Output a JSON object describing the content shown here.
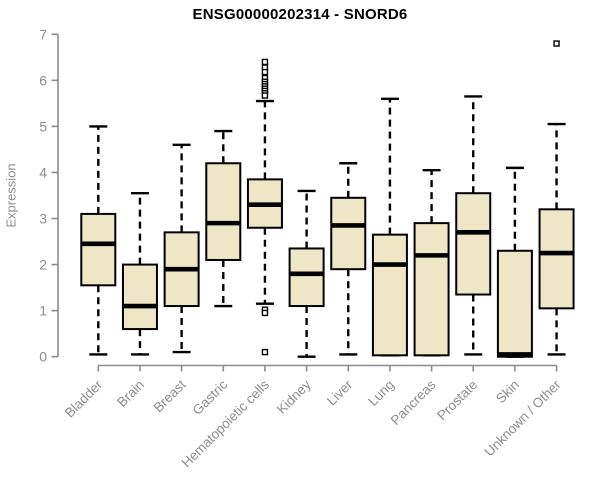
{
  "colors": {
    "box_fill": "#EDE7C8",
    "box_border": "#000000",
    "median_color": "#000000",
    "axis_color": "#8C8C8C",
    "tick_label_color": "#8E8E8E",
    "title_color": "#000000",
    "background": "#FFFFFF"
  },
  "chart_data": {
    "type": "boxplot",
    "title": "ENSG00000202314 - SNORD6",
    "ylabel": "Expression",
    "xlabel": "",
    "ylim": [
      0,
      7
    ],
    "yticks": [
      0,
      1,
      2,
      3,
      4,
      5,
      6,
      7
    ],
    "grid": false,
    "legend": false,
    "categories": [
      "Bladder",
      "Brain",
      "Breast",
      "Gastric",
      "Hematopoietic cells",
      "Kidney",
      "Liver",
      "Lung",
      "Pancreas",
      "Prostate",
      "Skin",
      "Unknown / Other"
    ],
    "series": [
      {
        "category": "Bladder",
        "whisker_low": 0.05,
        "q1": 1.55,
        "median": 2.45,
        "q3": 3.1,
        "whisker_high": 5.0,
        "outliers": []
      },
      {
        "category": "Brain",
        "whisker_low": 0.05,
        "q1": 0.6,
        "median": 1.1,
        "q3": 2.0,
        "whisker_high": 3.55,
        "outliers": []
      },
      {
        "category": "Breast",
        "whisker_low": 0.1,
        "q1": 1.1,
        "median": 1.9,
        "q3": 2.7,
        "whisker_high": 4.6,
        "outliers": []
      },
      {
        "category": "Gastric",
        "whisker_low": 1.1,
        "q1": 2.1,
        "median": 2.9,
        "q3": 4.2,
        "whisker_high": 4.9,
        "outliers": []
      },
      {
        "category": "Hematopoietic cells",
        "whisker_low": 1.15,
        "q1": 2.8,
        "median": 3.3,
        "q3": 3.85,
        "whisker_high": 5.55,
        "outliers": [
          6.4,
          6.28,
          6.18,
          6.05,
          5.97,
          5.92,
          5.87,
          5.82,
          5.77,
          5.72,
          5.67,
          1.02,
          0.95,
          0.1
        ]
      },
      {
        "category": "Kidney",
        "whisker_low": 0.0,
        "q1": 1.1,
        "median": 1.8,
        "q3": 2.35,
        "whisker_high": 3.6,
        "outliers": []
      },
      {
        "category": "Liver",
        "whisker_low": 0.05,
        "q1": 1.9,
        "median": 2.85,
        "q3": 3.45,
        "whisker_high": 4.2,
        "outliers": []
      },
      {
        "category": "Lung",
        "whisker_low": 0.03,
        "q1": 0.03,
        "median": 2.0,
        "q3": 2.65,
        "whisker_high": 5.6,
        "outliers": []
      },
      {
        "category": "Pancreas",
        "whisker_low": 0.03,
        "q1": 0.03,
        "median": 2.2,
        "q3": 2.9,
        "whisker_high": 4.05,
        "outliers": []
      },
      {
        "category": "Prostate",
        "whisker_low": 0.05,
        "q1": 1.35,
        "median": 2.7,
        "q3": 3.55,
        "whisker_high": 5.65,
        "outliers": []
      },
      {
        "category": "Skin",
        "whisker_low": 0.0,
        "q1": 0.0,
        "median": 0.05,
        "q3": 2.3,
        "whisker_high": 4.1,
        "outliers": []
      },
      {
        "category": "Unknown / Other",
        "whisker_low": 0.05,
        "q1": 1.05,
        "median": 2.25,
        "q3": 3.2,
        "whisker_high": 5.05,
        "outliers": [
          6.8
        ]
      }
    ]
  }
}
